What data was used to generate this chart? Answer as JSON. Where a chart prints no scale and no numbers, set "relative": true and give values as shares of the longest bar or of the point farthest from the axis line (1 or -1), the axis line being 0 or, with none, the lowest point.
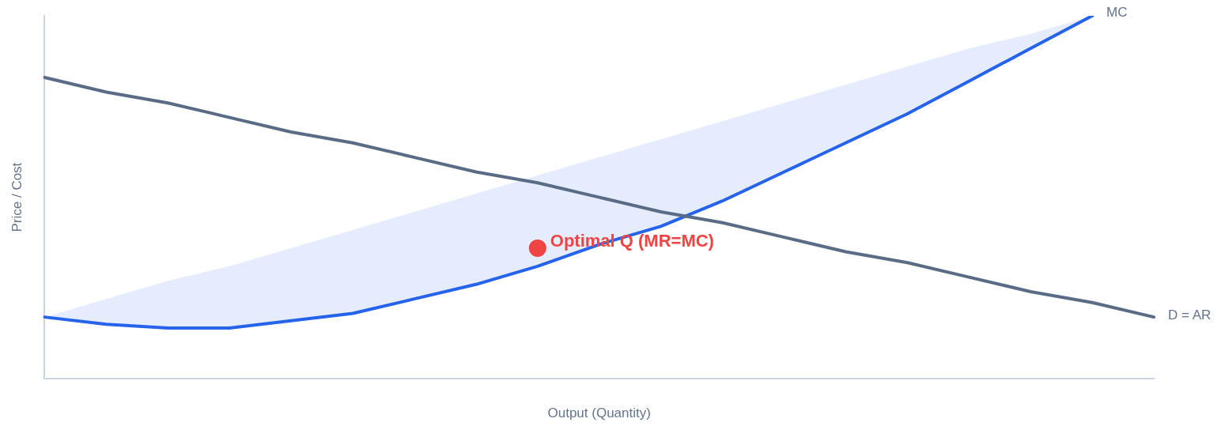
{
  "chart_data": {
    "type": "line",
    "relative": true,
    "xlabel": "Output (Quantity)",
    "ylabel": "Price / Cost",
    "grid": false,
    "legend": false,
    "marker": "none",
    "categories": [
      null,
      null,
      null,
      null,
      null,
      null,
      null,
      null,
      null,
      null,
      null,
      null,
      null,
      null,
      null,
      null,
      null,
      null,
      null
    ],
    "series": [
      {
        "name": "D = AR",
        "color": "#5a6b85",
        "values": [
          0.83,
          0.79,
          0.76,
          0.72,
          0.68,
          0.65,
          0.61,
          0.57,
          0.54,
          0.5,
          0.46,
          0.43,
          0.39,
          0.35,
          0.32,
          0.28,
          0.24,
          0.21,
          0.17
        ]
      },
      {
        "name": "MC",
        "color": "#2563eb",
        "values": [
          0.17,
          0.15,
          0.14,
          0.14,
          0.16,
          0.18,
          0.22,
          0.26,
          0.31,
          0.37,
          0.42,
          0.49,
          0.57,
          0.65,
          0.73,
          0.82,
          0.91,
          1.0,
          null
        ],
        "lower": [
          0.17,
          0.15,
          0.14,
          0.14,
          0.16,
          0.18,
          0.22,
          0.26,
          0.31,
          0.37,
          0.42,
          0.49,
          0.57,
          0.65,
          0.73,
          0.82,
          0.91,
          1.0,
          null
        ],
        "upper": [
          0.17,
          0.22,
          0.27,
          0.31,
          0.36,
          0.41,
          0.46,
          0.51,
          0.56,
          0.61,
          0.66,
          0.71,
          0.76,
          0.81,
          0.86,
          0.91,
          0.95,
          1.0,
          null
        ]
      },
      {
        "name": "Optimal Q (MR=MC)",
        "marker": "circle",
        "color": "#ef4444",
        "values": [
          null,
          null,
          null,
          null,
          null,
          null,
          null,
          null,
          0.36,
          null,
          null,
          null,
          null,
          null,
          null,
          null,
          null,
          null,
          null
        ]
      }
    ]
  }
}
